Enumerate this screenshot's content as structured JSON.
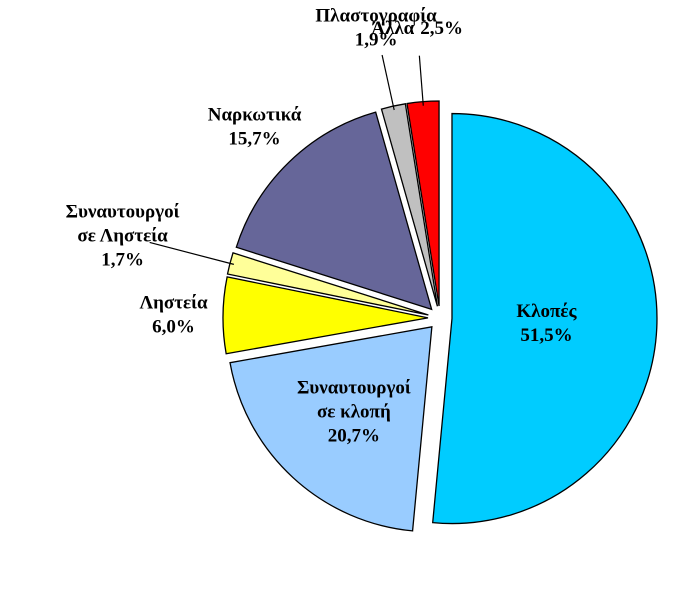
{
  "chart_data": {
    "type": "pie",
    "categories": [
      "Κλοπές",
      "Συναυτουργοί σε κλοπή",
      "Ληστεία",
      "Συναυτουργοί σε Ληστεία",
      "Ναρκωτικά",
      "Πλαστογραφία",
      "Άλλα"
    ],
    "values": [
      51.5,
      20.7,
      6.0,
      1.7,
      15.7,
      1.9,
      2.5
    ],
    "value_labels": [
      "51,5%",
      "20,7%",
      "6,0%",
      "1,7%",
      "15,7%",
      "1,9%",
      "2,5%"
    ],
    "colors": [
      "#00ccff",
      "#99ccff",
      "#ffff00",
      "#ffff99",
      "#666699",
      "#c0c0c0",
      "#ff0000"
    ]
  }
}
